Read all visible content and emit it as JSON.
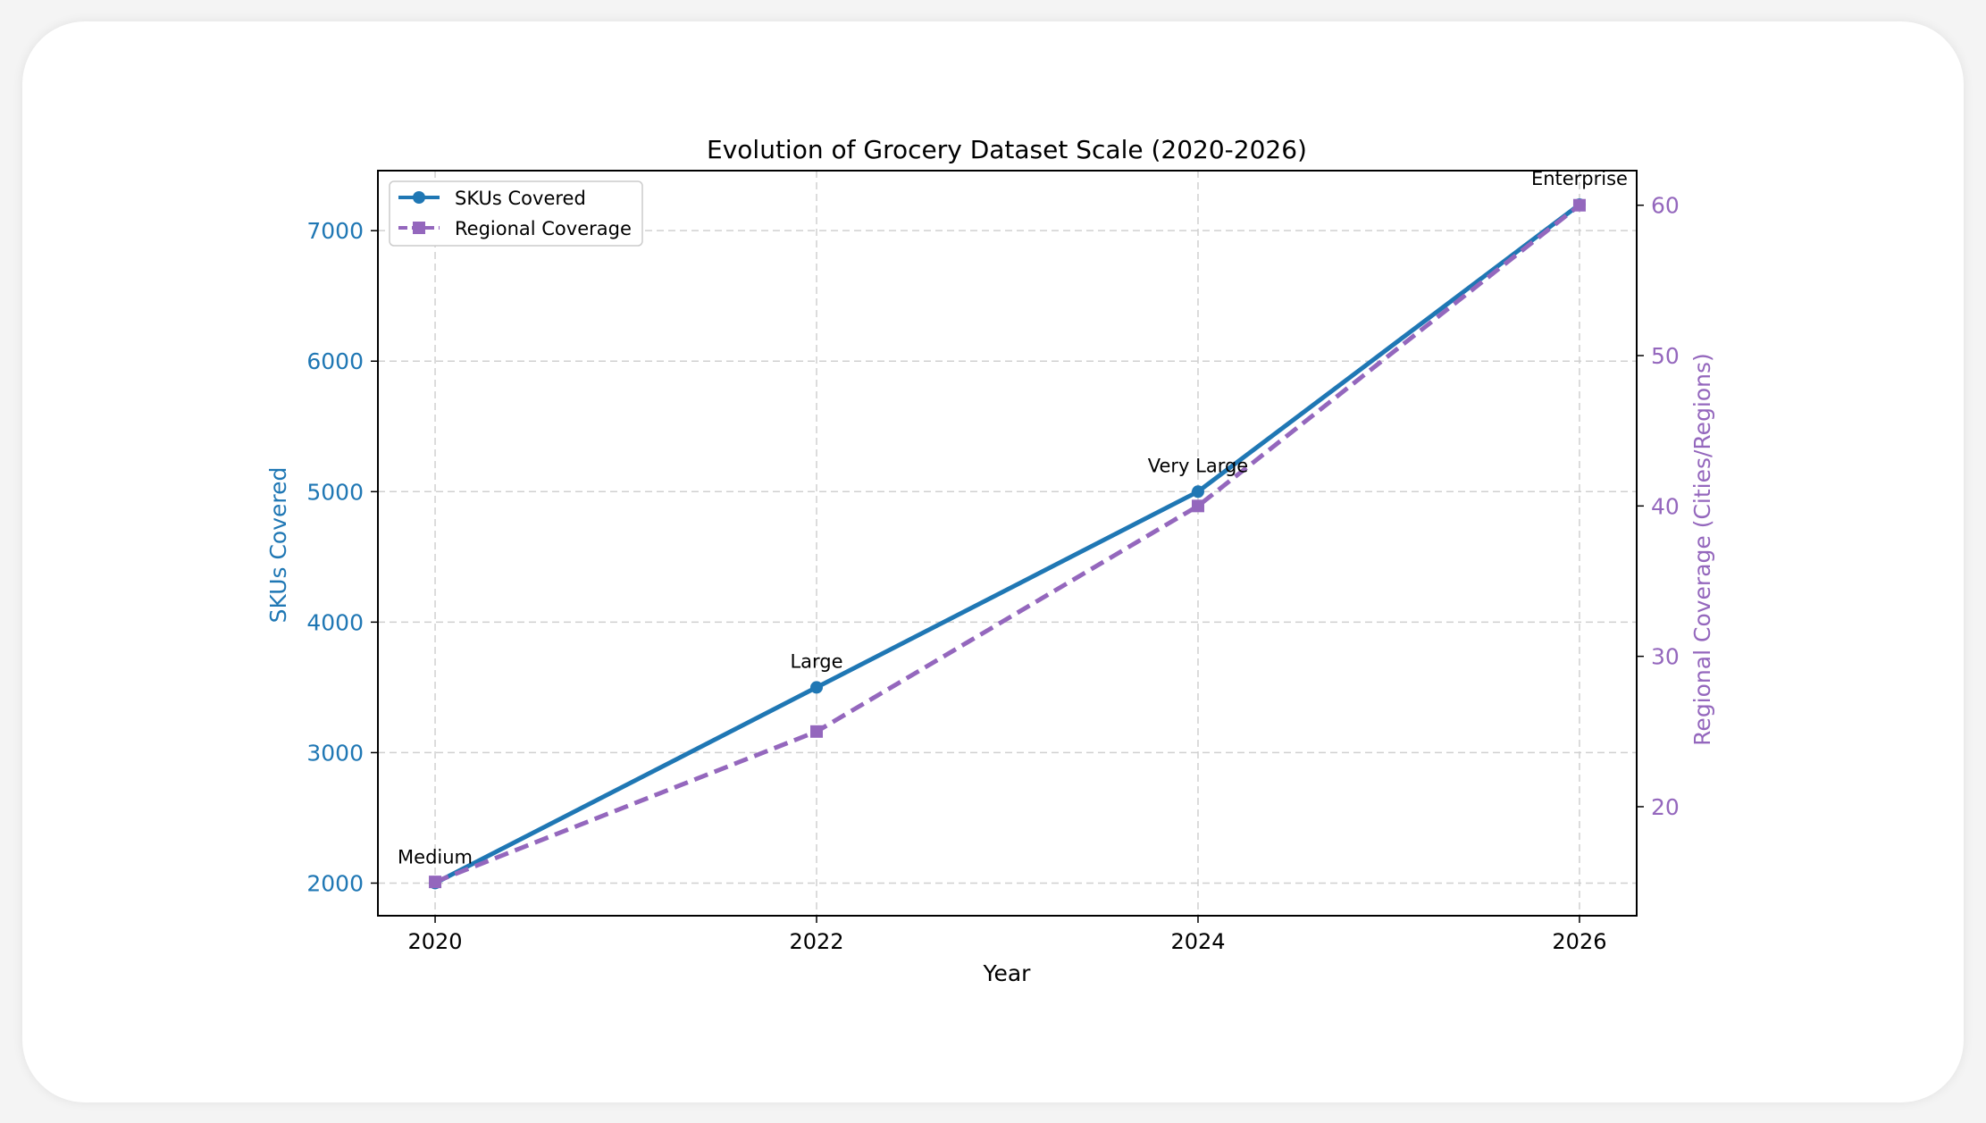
{
  "chart_data": {
    "type": "line",
    "title": "Evolution of Grocery Dataset Scale (2020-2026)",
    "xlabel": "Year",
    "ylabel": "SKUs Covered",
    "y2label": "Regional Coverage (Cities/Regions)",
    "x": [
      2020,
      2022,
      2024,
      2026
    ],
    "xticks": [
      "2020",
      "2022",
      "2024",
      "2026"
    ],
    "xlim": [
      2019.7,
      2026.3
    ],
    "ylim": [
      1750,
      7460
    ],
    "y2lim": [
      12.75,
      62.3
    ],
    "yticks": [
      2000,
      3000,
      4000,
      5000,
      6000,
      7000
    ],
    "y2ticks": [
      20,
      30,
      40,
      50,
      60
    ],
    "grid": true,
    "legend": "top-left",
    "series": [
      {
        "name": "SKUs Covered",
        "axis": "left",
        "values": [
          2000,
          3500,
          5000,
          7200
        ],
        "color": "#1f77b4",
        "marker": "circle",
        "linestyle": "solid"
      },
      {
        "name": "Regional Coverage",
        "axis": "right",
        "values": [
          15,
          25,
          40,
          60
        ],
        "color": "#9467bd",
        "marker": "square",
        "linestyle": "dashed"
      }
    ],
    "annotations": [
      "Medium",
      "Large",
      "Very Large",
      "Enterprise"
    ],
    "left_axis_color": "#1f77b4",
    "right_axis_color": "#9467bd"
  }
}
